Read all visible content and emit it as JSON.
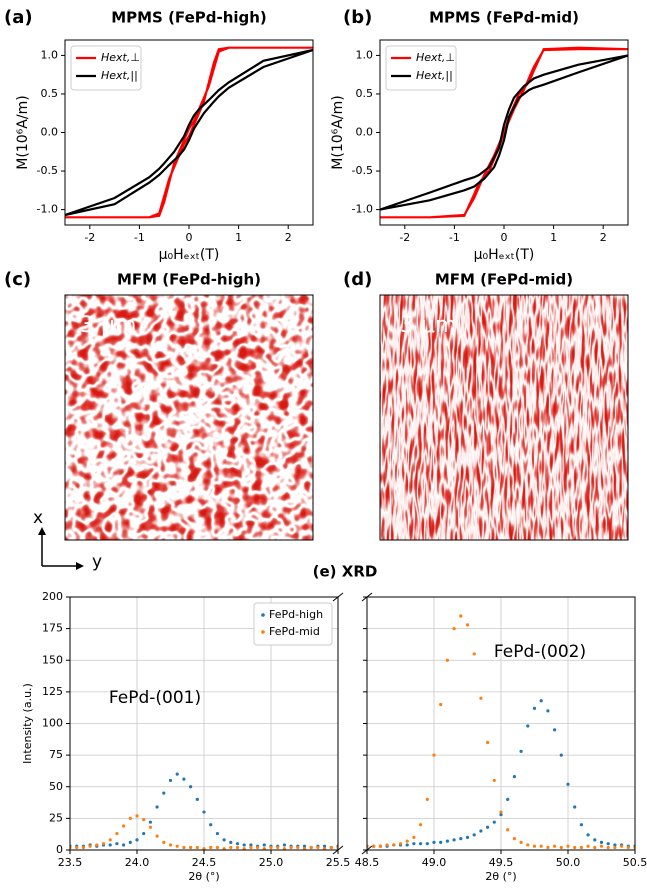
{
  "figure": {
    "panel_labels": [
      "(a)",
      "(b)",
      "(c)",
      "(d)",
      "(e) XRD"
    ],
    "mfm": [
      {
        "title": "MFM (FePd-high)",
        "scale": "3 μm"
      },
      {
        "title": "MFM (FePd-mid)",
        "scale": "3 μm"
      }
    ],
    "axes_labels": {
      "x": "x",
      "y": "y"
    }
  },
  "chart_data": [
    {
      "type": "line",
      "title": "MPMS (FePd-high)",
      "xlabel": "μ₀Hₑₓₜ(T)",
      "ylabel": "M(10⁶A/m)",
      "x": [
        2.5,
        1.5,
        0.8,
        0.6,
        0.4,
        0.2,
        0.1,
        0,
        -0.1,
        -0.3,
        -0.5,
        -0.6,
        -0.8,
        -1.5,
        -2.5,
        -1.5,
        -0.8,
        -0.6,
        -0.4,
        -0.2,
        -0.1,
        0,
        0.1,
        0.3,
        0.5,
        0.6,
        0.8,
        1.5,
        2.5
      ],
      "series": [
        {
          "name": "Hext,⊥",
          "color": "#ff0000",
          "values": [
            1.1,
            1.1,
            1.1,
            1.05,
            0.6,
            0.3,
            0.15,
            0.05,
            -0.1,
            -0.4,
            -0.9,
            -1.08,
            -1.1,
            -1.1,
            -1.1,
            -1.1,
            -1.1,
            -1.05,
            -0.6,
            -0.3,
            -0.15,
            -0.05,
            0.1,
            0.4,
            0.9,
            1.08,
            1.1,
            1.1,
            1.1
          ]
        },
        {
          "name": "Hext,||",
          "color": "#000000",
          "values": [
            1.07,
            0.93,
            0.65,
            0.55,
            0.42,
            0.3,
            0.22,
            0.1,
            -0.05,
            -0.25,
            -0.4,
            -0.47,
            -0.58,
            -0.85,
            -1.07,
            -0.93,
            -0.65,
            -0.55,
            -0.42,
            -0.3,
            -0.22,
            -0.1,
            0.05,
            0.25,
            0.4,
            0.47,
            0.58,
            0.85,
            1.07
          ]
        }
      ],
      "xlim": [
        -2.5,
        2.5
      ],
      "xticks": [
        -2,
        -1,
        0,
        1,
        2
      ],
      "ylim": [
        -1.2,
        1.2
      ],
      "yticks": [
        {
          "value": -1,
          "label": "-1.0"
        },
        -0.5,
        {
          "value": 0,
          "label": "0.0"
        },
        0.5,
        {
          "value": 1,
          "label": "1.0"
        }
      ],
      "grid": false,
      "legend": "upper left"
    },
    {
      "type": "line",
      "title": "MPMS (FePd-mid)",
      "xlabel": "μ₀Hₑₓₜ(T)",
      "ylabel": "M(10⁶A/m)",
      "x": [
        2.5,
        1.5,
        0.8,
        0.6,
        0.4,
        0.2,
        0.1,
        0,
        -0.1,
        -0.3,
        -0.5,
        -0.6,
        -0.8,
        -1.5,
        -2.5,
        -1.5,
        -0.8,
        -0.6,
        -0.4,
        -0.2,
        -0.1,
        0,
        0.1,
        0.3,
        0.5,
        0.6,
        0.8,
        1.5,
        2.5
      ],
      "series": [
        {
          "name": "Hext,⊥",
          "color": "#ff0000",
          "values": [
            1.08,
            1.08,
            1.07,
            0.85,
            0.55,
            0.3,
            0.15,
            0,
            -0.2,
            -0.5,
            -0.65,
            -0.8,
            -1.08,
            -1.1,
            -1.1,
            -1.1,
            -1.07,
            -0.85,
            -0.55,
            -0.3,
            -0.15,
            0,
            0.2,
            0.5,
            0.65,
            0.8,
            1.08,
            1.1,
            1.08
          ]
        },
        {
          "name": "Hext,||",
          "color": "#000000",
          "values": [
            1.0,
            0.88,
            0.75,
            0.7,
            0.6,
            0.45,
            0.3,
            0.1,
            -0.2,
            -0.45,
            -0.55,
            -0.58,
            -0.62,
            -0.78,
            -1.0,
            -0.88,
            -0.75,
            -0.7,
            -0.6,
            -0.45,
            -0.3,
            -0.1,
            0.2,
            0.45,
            0.55,
            0.58,
            0.62,
            0.78,
            1.0
          ]
        }
      ],
      "xlim": [
        -2.5,
        2.5
      ],
      "xticks": [
        -2,
        -1,
        0,
        1,
        2
      ],
      "ylim": [
        -1.2,
        1.2
      ],
      "yticks": [
        {
          "value": -1,
          "label": "-1.0"
        },
        -0.5,
        {
          "value": 0,
          "label": "0.0"
        },
        0.5,
        {
          "value": 1,
          "label": "1.0"
        }
      ],
      "grid": false,
      "legend": "upper left"
    },
    {
      "type": "scatter",
      "xlabel": "2θ (°)",
      "ylabel": "Intensity (a.u.)",
      "annotations": [
        "FePd-(001)"
      ],
      "x": [
        23.5,
        23.55,
        23.6,
        23.65,
        23.7,
        23.75,
        23.8,
        23.85,
        23.9,
        23.95,
        24.0,
        24.05,
        24.1,
        24.15,
        24.2,
        24.25,
        24.3,
        24.35,
        24.4,
        24.45,
        24.5,
        24.55,
        24.6,
        24.65,
        24.7,
        24.75,
        24.8,
        24.85,
        24.9,
        24.95,
        25.0,
        25.05,
        25.1,
        25.15,
        25.2,
        25.25,
        25.3,
        25.35,
        25.4,
        25.45,
        25.5
      ],
      "series": [
        {
          "name": "FePd-high",
          "color": "#1f77b4",
          "values": [
            3,
            3,
            3,
            4,
            3,
            4,
            4,
            5,
            4,
            6,
            8,
            13,
            22,
            34,
            45,
            55,
            60,
            56,
            50,
            40,
            30,
            20,
            13,
            8,
            6,
            5,
            4,
            4,
            3,
            4,
            3,
            3,
            4,
            3,
            3,
            3,
            2,
            3,
            3,
            2,
            3
          ]
        },
        {
          "name": "FePd-mid",
          "color": "#ff7f0e",
          "values": [
            2,
            2,
            2,
            3,
            4,
            5,
            8,
            13,
            19,
            25,
            27,
            24,
            18,
            11,
            6,
            4,
            3,
            2,
            2,
            2,
            1,
            2,
            2,
            1,
            2,
            2,
            1,
            2,
            2,
            1,
            2,
            2,
            1,
            2,
            2,
            1,
            2,
            2,
            1,
            2,
            2
          ]
        }
      ],
      "xlim": [
        23.5,
        25.5
      ],
      "xticks": [
        23.5,
        {
          "value": 24,
          "label": "24.0"
        },
        24.5,
        {
          "value": 25,
          "label": "25.0"
        },
        25.5
      ],
      "ylim": [
        0,
        200
      ],
      "yticks": [
        0,
        25,
        50,
        75,
        100,
        125,
        150,
        175,
        200
      ],
      "grid": true,
      "legend": "upper right"
    },
    {
      "type": "scatter",
      "xlabel": "2θ (°)",
      "annotations": [
        "FePd-(002)"
      ],
      "x": [
        48.5,
        48.55,
        48.6,
        48.65,
        48.7,
        48.75,
        48.8,
        48.85,
        48.9,
        48.95,
        49.0,
        49.05,
        49.1,
        49.15,
        49.2,
        49.25,
        49.3,
        49.35,
        49.4,
        49.45,
        49.5,
        49.55,
        49.6,
        49.65,
        49.7,
        49.75,
        49.8,
        49.85,
        49.9,
        49.95,
        50.0,
        50.05,
        50.1,
        50.15,
        50.2,
        50.25,
        50.3,
        50.35,
        50.4,
        50.45,
        50.5
      ],
      "series": [
        {
          "color": "#1f77b4",
          "values": [
            3,
            3,
            3,
            3,
            4,
            4,
            4,
            5,
            5,
            5,
            6,
            6,
            7,
            8,
            9,
            10,
            12,
            15,
            18,
            22,
            28,
            40,
            58,
            78,
            98,
            112,
            118,
            110,
            95,
            75,
            52,
            34,
            20,
            12,
            8,
            6,
            5,
            4,
            4,
            3,
            3
          ]
        },
        {
          "color": "#ff7f0e",
          "values": [
            3,
            3,
            3,
            4,
            4,
            5,
            7,
            10,
            20,
            40,
            75,
            115,
            150,
            175,
            185,
            178,
            155,
            120,
            85,
            55,
            30,
            16,
            9,
            6,
            4,
            3,
            3,
            2,
            3,
            2,
            3,
            2,
            2,
            3,
            2,
            3,
            2,
            2,
            3,
            2,
            2
          ]
        }
      ],
      "xlim": [
        48.5,
        50.5
      ],
      "xticks": [
        48.5,
        {
          "value": 49,
          "label": "49.0"
        },
        49.5,
        {
          "value": 50,
          "label": "50.0"
        },
        50.5
      ],
      "ylim": [
        0,
        200
      ],
      "yticks": [
        0,
        25,
        50,
        75,
        100,
        125,
        150,
        175,
        200
      ],
      "grid": true
    }
  ]
}
